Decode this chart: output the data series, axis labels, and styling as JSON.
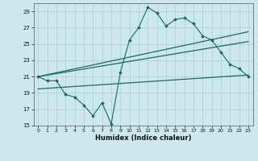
{
  "xlabel": "Humidex (Indice chaleur)",
  "bg_color": "#cce8ec",
  "grid_color": "#aacdd4",
  "line_color": "#1a6b5a",
  "xlim": [
    -0.5,
    23.5
  ],
  "ylim": [
    15,
    30
  ],
  "xticks": [
    0,
    1,
    2,
    3,
    4,
    5,
    6,
    7,
    8,
    9,
    10,
    11,
    12,
    13,
    14,
    15,
    16,
    17,
    18,
    19,
    20,
    21,
    22,
    23
  ],
  "yticks": [
    15,
    17,
    19,
    21,
    23,
    25,
    27,
    29
  ],
  "series1_x": [
    0,
    1,
    2,
    3,
    4,
    5,
    6,
    7,
    8,
    9,
    10,
    11,
    12,
    13,
    14,
    15,
    16,
    17,
    18,
    19,
    20,
    21,
    22,
    23
  ],
  "series1_y": [
    21.0,
    20.5,
    20.5,
    18.8,
    18.5,
    17.5,
    16.2,
    17.8,
    15.2,
    21.5,
    25.5,
    27.0,
    29.5,
    28.8,
    27.2,
    28.0,
    28.2,
    27.5,
    26.0,
    25.5,
    24.0,
    22.5,
    22.0,
    21.0
  ],
  "series2_x": [
    0,
    23
  ],
  "series2_y": [
    21.0,
    26.5
  ],
  "series3_x": [
    0,
    23
  ],
  "series3_y": [
    21.0,
    25.3
  ],
  "series4_x": [
    0,
    23
  ],
  "series4_y": [
    19.5,
    21.2
  ]
}
